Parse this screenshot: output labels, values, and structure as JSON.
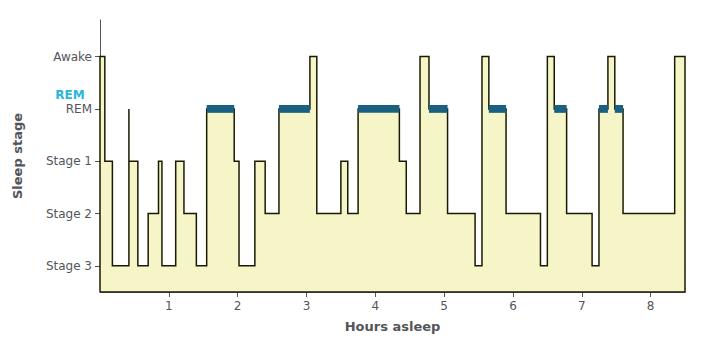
{
  "chart_data": {
    "type": "area",
    "xlabel": "Hours asleep",
    "ylabel": "Sleep stage",
    "xlim": [
      0,
      8.5
    ],
    "ylim": [
      0.5,
      5.7
    ],
    "xticks": [
      1,
      2,
      3,
      4,
      5,
      6,
      7,
      8
    ],
    "yticks": [
      {
        "value": 1,
        "label": "Stage 3"
      },
      {
        "value": 2,
        "label": "Stage 2"
      },
      {
        "value": 3,
        "label": "Stage 1"
      },
      {
        "value": 4,
        "label": "REM"
      },
      {
        "value": 5,
        "label": "Awake"
      }
    ],
    "grid": false,
    "series": [
      {
        "type": "area",
        "color": "#f5f5c8",
        "x": [
          0.0,
          0.07,
          0.07,
          0.18,
          0.18,
          0.42,
          0.42,
          0.42,
          0.55,
          0.55,
          0.7,
          0.7,
          0.85,
          0.85,
          0.9,
          0.9,
          1.1,
          1.1,
          1.22,
          1.22,
          1.4,
          1.4,
          1.55,
          1.55,
          1.95,
          1.95,
          2.02,
          2.02,
          2.25,
          2.25,
          2.4,
          2.4,
          2.6,
          2.6,
          3.05,
          3.05,
          3.15,
          3.15,
          3.5,
          3.5,
          3.6,
          3.6,
          3.75,
          3.75,
          4.35,
          4.35,
          4.45,
          4.45,
          4.65,
          4.65,
          4.78,
          4.78,
          5.05,
          5.05,
          5.45,
          5.45,
          5.55,
          5.55,
          5.65,
          5.65,
          5.9,
          5.9,
          6.4,
          6.4,
          6.5,
          6.5,
          6.6,
          6.6,
          6.78,
          6.78,
          7.15,
          7.15,
          7.25,
          7.25,
          7.38,
          7.38,
          7.48,
          7.48,
          7.6,
          7.6,
          8.35,
          8.35,
          8.5
        ],
        "values": [
          5,
          5,
          3,
          3,
          1,
          1,
          4,
          3,
          3,
          1,
          1,
          2,
          2,
          3,
          3,
          1,
          1,
          3,
          3,
          2,
          2,
          1,
          1,
          4,
          4,
          3,
          3,
          1,
          1,
          3,
          3,
          2,
          2,
          4,
          4,
          5,
          5,
          2,
          2,
          3,
          3,
          2,
          2,
          4,
          4,
          3,
          3,
          2,
          2,
          5,
          5,
          4,
          4,
          2,
          2,
          1,
          1,
          5,
          5,
          4,
          4,
          2,
          2,
          1,
          1,
          5,
          5,
          4,
          4,
          2,
          2,
          1,
          1,
          4,
          4,
          5,
          5,
          4,
          4,
          2,
          2,
          5,
          5
        ]
      },
      {
        "type": "line",
        "color": "#1a1a00",
        "x": [
          0.0,
          0.07,
          0.07,
          0.18,
          0.18,
          0.42,
          0.42,
          0.42,
          0.55,
          0.55,
          0.7,
          0.7,
          0.85,
          0.85,
          0.9,
          0.9,
          1.1,
          1.1,
          1.22,
          1.22,
          1.4,
          1.4,
          1.55,
          1.55,
          1.95,
          1.95,
          2.02,
          2.02,
          2.25,
          2.25,
          2.4,
          2.4,
          2.6,
          2.6,
          3.05,
          3.05,
          3.15,
          3.15,
          3.5,
          3.5,
          3.6,
          3.6,
          3.75,
          3.75,
          4.35,
          4.35,
          4.45,
          4.45,
          4.65,
          4.65,
          4.78,
          4.78,
          5.05,
          5.05,
          5.45,
          5.45,
          5.55,
          5.55,
          5.65,
          5.65,
          5.9,
          5.9,
          6.4,
          6.4,
          6.5,
          6.5,
          6.6,
          6.6,
          6.78,
          6.78,
          7.15,
          7.15,
          7.25,
          7.25,
          7.38,
          7.38,
          7.48,
          7.48,
          7.6,
          7.6,
          8.35,
          8.35,
          8.5
        ],
        "values": [
          5,
          5,
          3,
          3,
          1,
          1,
          4,
          3,
          3,
          1,
          1,
          2,
          2,
          3,
          3,
          1,
          1,
          3,
          3,
          2,
          2,
          1,
          1,
          4,
          4,
          3,
          3,
          1,
          1,
          3,
          3,
          2,
          2,
          4,
          4,
          5,
          5,
          2,
          2,
          3,
          3,
          2,
          2,
          4,
          4,
          3,
          3,
          2,
          2,
          5,
          5,
          4,
          4,
          2,
          2,
          1,
          1,
          5,
          5,
          4,
          4,
          2,
          2,
          1,
          1,
          5,
          5,
          4,
          4,
          2,
          2,
          1,
          1,
          4,
          4,
          5,
          5,
          4,
          4,
          2,
          2,
          5,
          5
        ]
      },
      {
        "type": "band",
        "color": "#1a6080",
        "y": 4,
        "ranges": [
          [
            1.55,
            1.95
          ],
          [
            2.6,
            3.05
          ],
          [
            3.75,
            4.35
          ],
          [
            4.78,
            5.05
          ],
          [
            5.65,
            5.9
          ],
          [
            6.6,
            6.78
          ],
          [
            7.25,
            7.38
          ],
          [
            7.48,
            7.6
          ]
        ]
      }
    ],
    "annotations": [
      {
        "text": "REM",
        "x": -0.65,
        "y": 4,
        "color": "#29b6d8"
      }
    ]
  }
}
